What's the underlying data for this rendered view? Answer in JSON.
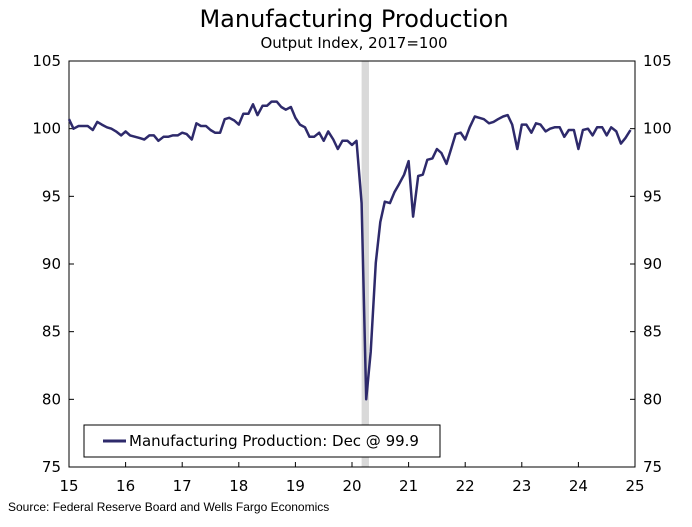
{
  "chart_data": {
    "type": "line",
    "title": "Manufacturing Production",
    "subtitle": "Output Index, 2017=100",
    "xlabel": "",
    "ylabel": "",
    "x_tick_labels": [
      "15",
      "16",
      "17",
      "18",
      "19",
      "20",
      "21",
      "22",
      "23",
      "24",
      "25"
    ],
    "x_range": [
      2015.0,
      2025.0
    ],
    "y_ticks": [
      75,
      80,
      85,
      90,
      95,
      100,
      105
    ],
    "ylim": [
      75,
      105
    ],
    "recession_shading": {
      "start": 2020.17,
      "end": 2020.3
    },
    "series": [
      {
        "name": "Manufacturing Production: Dec @ 99.9",
        "color": "#2e2a6b",
        "x": [
          2015.0,
          2015.08,
          2015.17,
          2015.25,
          2015.33,
          2015.42,
          2015.5,
          2015.58,
          2015.67,
          2015.75,
          2015.83,
          2015.92,
          2016.0,
          2016.08,
          2016.17,
          2016.25,
          2016.33,
          2016.42,
          2016.5,
          2016.58,
          2016.67,
          2016.75,
          2016.83,
          2016.92,
          2017.0,
          2017.08,
          2017.17,
          2017.25,
          2017.33,
          2017.42,
          2017.5,
          2017.58,
          2017.67,
          2017.75,
          2017.83,
          2017.92,
          2018.0,
          2018.08,
          2018.17,
          2018.25,
          2018.33,
          2018.42,
          2018.5,
          2018.58,
          2018.67,
          2018.75,
          2018.83,
          2018.92,
          2019.0,
          2019.08,
          2019.17,
          2019.25,
          2019.33,
          2019.42,
          2019.5,
          2019.58,
          2019.67,
          2019.75,
          2019.83,
          2019.92,
          2020.0,
          2020.08,
          2020.17,
          2020.25,
          2020.33,
          2020.42,
          2020.5,
          2020.58,
          2020.67,
          2020.75,
          2020.83,
          2020.92,
          2021.0,
          2021.08,
          2021.17,
          2021.25,
          2021.33,
          2021.42,
          2021.5,
          2021.58,
          2021.67,
          2021.75,
          2021.83,
          2021.92,
          2022.0,
          2022.08,
          2022.17,
          2022.25,
          2022.33,
          2022.42,
          2022.5,
          2022.58,
          2022.67,
          2022.75,
          2022.83,
          2022.92,
          2023.0,
          2023.08,
          2023.17,
          2023.25,
          2023.33,
          2023.42,
          2023.5,
          2023.58,
          2023.67,
          2023.75,
          2023.83,
          2023.92,
          2024.0,
          2024.08,
          2024.17,
          2024.25,
          2024.33,
          2024.42,
          2024.5,
          2024.58,
          2024.67,
          2024.75,
          2024.83,
          2024.92
        ],
        "values": [
          100.7,
          100.0,
          100.2,
          100.2,
          100.2,
          99.9,
          100.5,
          100.3,
          100.1,
          100.0,
          99.8,
          99.5,
          99.8,
          99.5,
          99.4,
          99.3,
          99.2,
          99.5,
          99.5,
          99.1,
          99.4,
          99.4,
          99.5,
          99.5,
          99.7,
          99.6,
          99.2,
          100.4,
          100.2,
          100.2,
          99.9,
          99.7,
          99.7,
          100.7,
          100.8,
          100.6,
          100.3,
          101.1,
          101.1,
          101.8,
          101.0,
          101.7,
          101.7,
          102.0,
          102.0,
          101.6,
          101.4,
          101.6,
          100.8,
          100.3,
          100.1,
          99.4,
          99.4,
          99.7,
          99.1,
          99.8,
          99.2,
          98.5,
          99.1,
          99.1,
          98.8,
          99.1,
          94.5,
          80.0,
          83.5,
          90.1,
          93.1,
          94.6,
          94.5,
          95.3,
          95.9,
          96.6,
          97.6,
          93.5,
          96.5,
          96.6,
          97.7,
          97.8,
          98.5,
          98.2,
          97.4,
          98.5,
          99.6,
          99.7,
          99.2,
          100.1,
          100.9,
          100.8,
          100.7,
          100.4,
          100.5,
          100.7,
          100.9,
          101.0,
          100.3,
          98.5,
          100.3,
          100.3,
          99.7,
          100.4,
          100.3,
          99.8,
          100.0,
          100.1,
          100.1,
          99.4,
          99.9,
          99.9,
          98.5,
          99.9,
          100.0,
          99.5,
          100.1,
          100.1,
          99.5,
          100.1,
          99.8,
          98.9,
          99.3,
          99.9
        ]
      }
    ],
    "legend": "bottom-left",
    "source": "Source: Federal Reserve Board and Wells Fargo Economics"
  }
}
